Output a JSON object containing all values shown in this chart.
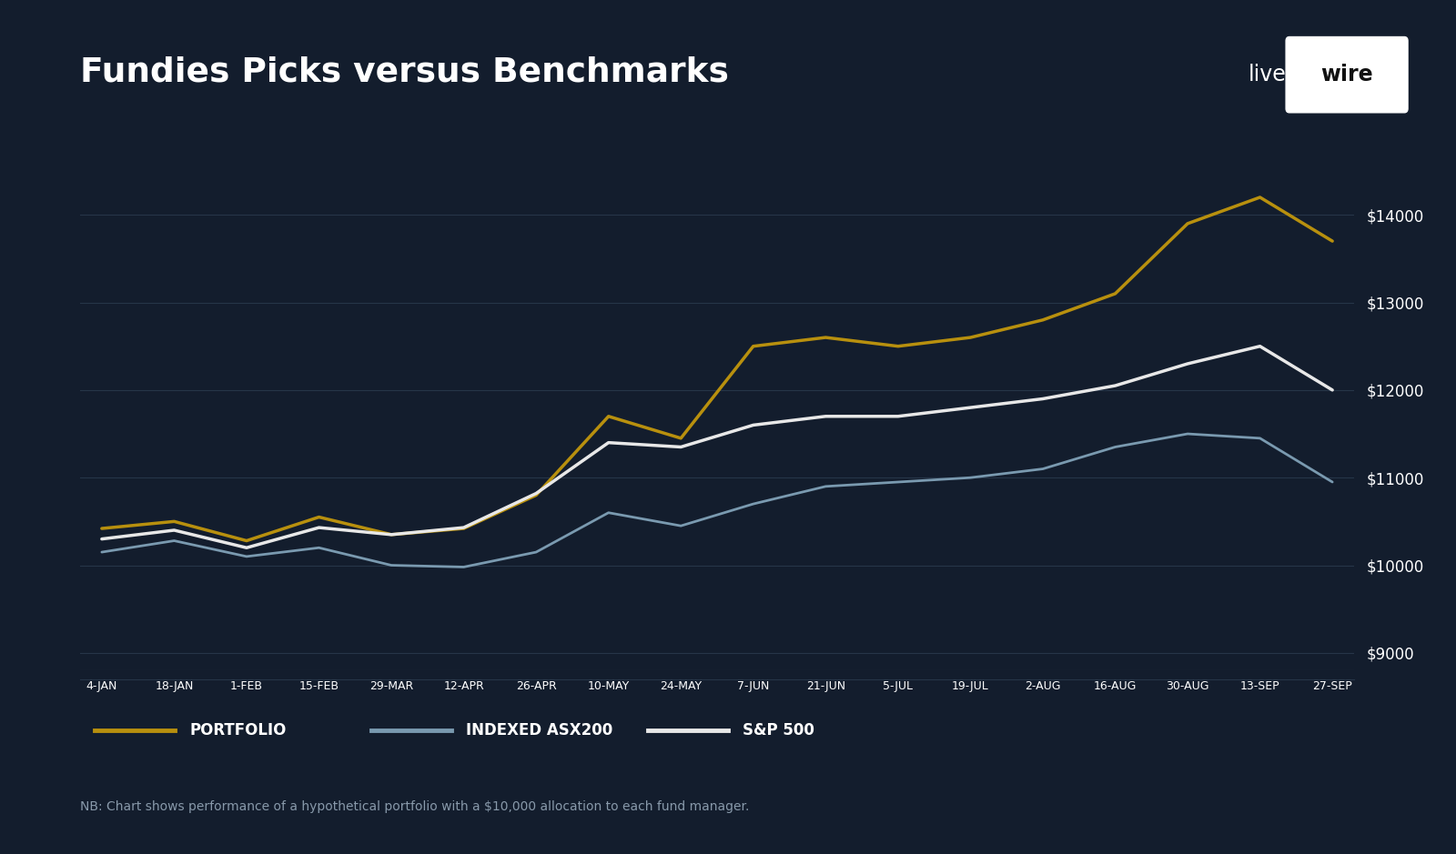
{
  "title": "Fundies Picks versus Benchmarks",
  "background_color": "#131d2d",
  "grid_color": "#263548",
  "text_color": "#ffffff",
  "note_color": "#8899aa",
  "x_labels": [
    "4-JAN",
    "18-JAN",
    "1-FEB",
    "15-FEB",
    "29-MAR",
    "12-APR",
    "26-APR",
    "10-MAY",
    "24-MAY",
    "7-JUN",
    "21-JUN",
    "5-JUL",
    "19-JUL",
    "2-AUG",
    "16-AUG",
    "30-AUG",
    "13-SEP",
    "27-SEP"
  ],
  "y_ticks": [
    9000,
    10000,
    11000,
    12000,
    13000,
    14000
  ],
  "ylim": [
    8800,
    14600
  ],
  "portfolio": [
    10420,
    10500,
    10280,
    10550,
    10350,
    10420,
    10800,
    11700,
    11450,
    12500,
    12600,
    12500,
    12600,
    12800,
    13100,
    13900,
    14200,
    13700
  ],
  "asx200": [
    10150,
    10280,
    10100,
    10200,
    10000,
    9980,
    10150,
    10600,
    10450,
    10700,
    10900,
    10950,
    11000,
    11100,
    11350,
    11500,
    11450,
    10950
  ],
  "sp500": [
    10300,
    10400,
    10200,
    10430,
    10350,
    10430,
    10820,
    11400,
    11350,
    11600,
    11700,
    11700,
    11800,
    11900,
    12050,
    12300,
    12500,
    12000
  ],
  "portfolio_color": "#b8900e",
  "asx200_color": "#7a9ab0",
  "sp500_color": "#e8e8e8",
  "legend_labels": [
    "PORTFOLIO",
    "INDEXED ASX200",
    "S&P 500"
  ],
  "note": "NB: Chart shows performance of a hypothetical portfolio with a $10,000 allocation to each fund manager."
}
